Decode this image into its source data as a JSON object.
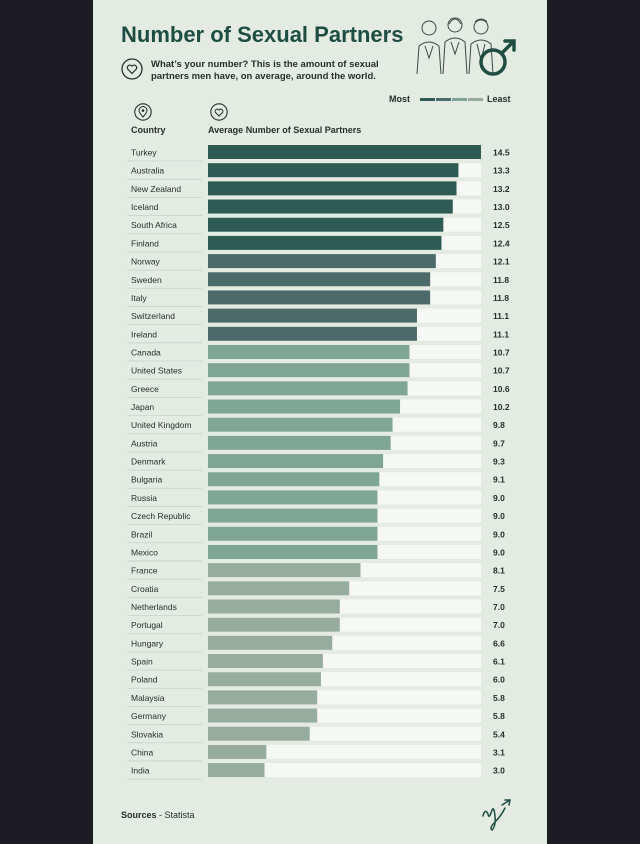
{
  "header": {
    "title": "Number of Sexual Partners",
    "subtitle": "What’s your number? This is the amount of sexual partners men have, on average, around the world."
  },
  "legend": {
    "most_label": "Most",
    "least_label": "Least"
  },
  "columns": {
    "country": "Country",
    "average": "Average Number of Sexual Partners"
  },
  "footer": {
    "sources_label": "Sources",
    "sources_value": "Statista"
  },
  "icons": {
    "subtitle": "heart-icon",
    "country_column": "location-pin-icon",
    "average_column": "heart-icon",
    "illustration": "people-illustration",
    "male_symbol": "male-symbol-icon",
    "brand": "signature-logo-icon"
  },
  "colors": {
    "title": "#1f4d42",
    "background": "#e3ebe3",
    "tier_most": "#2e5c53",
    "tier_high": "#4c6b68",
    "tier_mid": "#7ea596",
    "tier_low": "#98ab9f",
    "track": "#f6f8f5"
  },
  "chart_data": {
    "type": "bar",
    "orientation": "horizontal",
    "title": "Number of Sexual Partners",
    "ylabel": "Country",
    "xlabel": "Average Number of Sexual Partners",
    "xlim": [
      0,
      14.5
    ],
    "categories": [
      "Turkey",
      "Australia",
      "New Zealand",
      "Iceland",
      "South Africa",
      "Finland",
      "Norway",
      "Sweden",
      "Italy",
      "Switzerland",
      "Ireland",
      "Canada",
      "United States",
      "Greece",
      "Japan",
      "United Kingdom",
      "Austria",
      "Denmark",
      "Bulgaria",
      "Russia",
      "Czech Republic",
      "Brazil",
      "Mexico",
      "France",
      "Croatia",
      "Netherlands",
      "Portugal",
      "Hungary",
      "Spain",
      "Poland",
      "Malaysia",
      "Germany",
      "Slovakia",
      "China",
      "India"
    ],
    "values": [
      14.5,
      13.3,
      13.2,
      13.0,
      12.5,
      12.4,
      12.1,
      11.8,
      11.8,
      11.1,
      11.1,
      10.7,
      10.7,
      10.6,
      10.2,
      9.8,
      9.7,
      9.3,
      9.1,
      9.0,
      9.0,
      9.0,
      9.0,
      8.1,
      7.5,
      7.0,
      7.0,
      6.6,
      6.1,
      6.0,
      5.8,
      5.8,
      5.4,
      3.1,
      3.0
    ],
    "value_labels": [
      "14.5",
      "13.3",
      "13.2",
      "13.0",
      "12.5",
      "12.4",
      "12.1",
      "11.8",
      "11.8",
      "11.1",
      "11.1",
      "10.7",
      "10.7",
      "10.6",
      "10.2",
      "9.8",
      "9.7",
      "9.3",
      "9.1",
      "9.0",
      "9.0",
      "9.0",
      "9.0",
      "8.1",
      "7.5",
      "7.0",
      "7.0",
      "6.6",
      "6.1",
      "6.0",
      "5.8",
      "5.8",
      "5.4",
      "3.1",
      "3.0"
    ],
    "tiers": [
      "most",
      "most",
      "most",
      "most",
      "most",
      "most",
      "high",
      "high",
      "high",
      "high",
      "high",
      "mid",
      "mid",
      "mid",
      "mid",
      "mid",
      "mid",
      "mid",
      "mid",
      "mid",
      "mid",
      "mid",
      "mid",
      "low",
      "low",
      "low",
      "low",
      "low",
      "low",
      "low",
      "low",
      "low",
      "low",
      "low",
      "low"
    ],
    "legend": "top-right",
    "grid": false
  }
}
